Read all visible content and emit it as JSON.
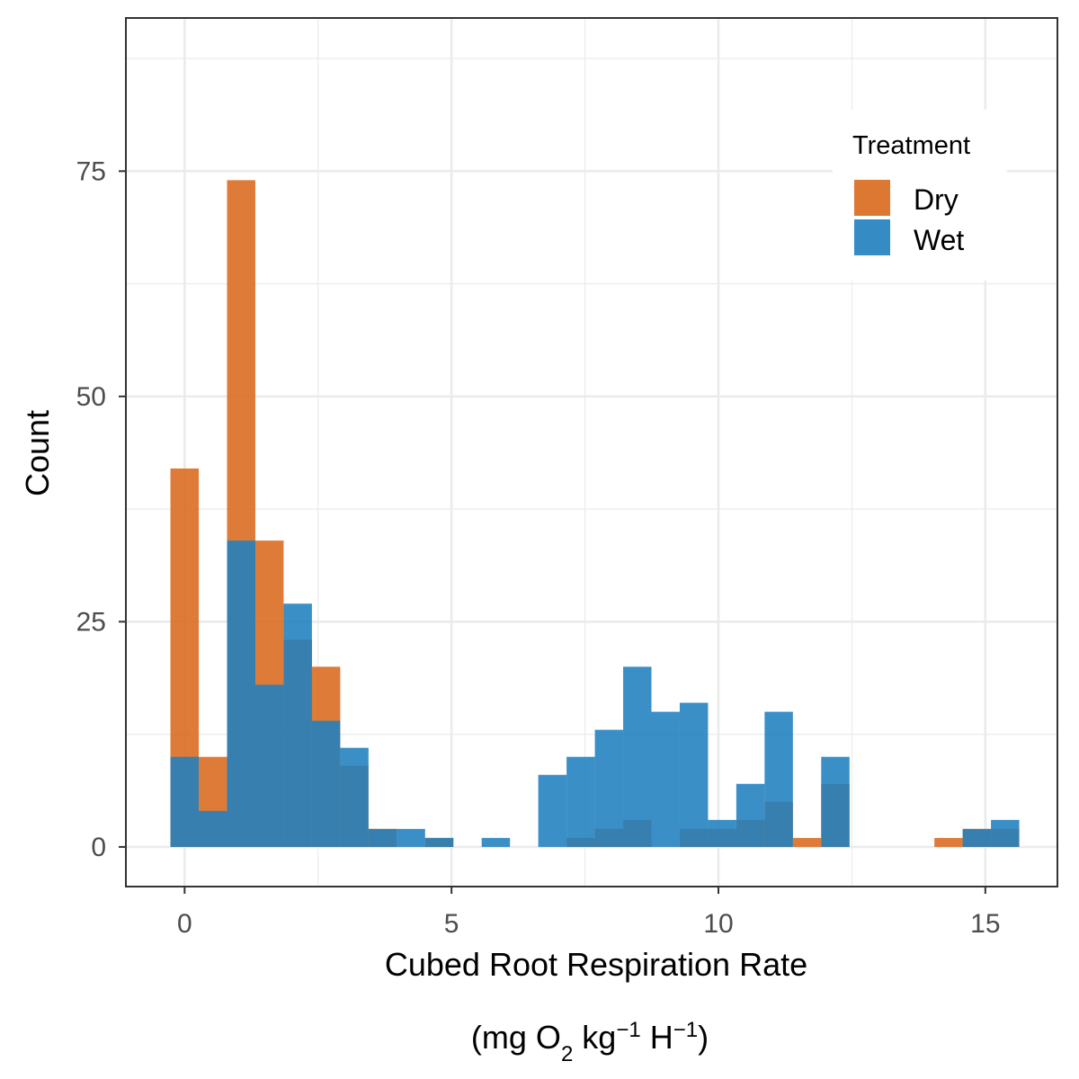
{
  "chart_data": {
    "type": "histogram",
    "xlabel": "Cubed Root Respiration Rate",
    "xlabel_units": {
      "open": "(mg O",
      "sub": "2",
      "kg": " kg",
      "kg_sup": "−1",
      "h": " H",
      "h_sup": "−1",
      "close": ")"
    },
    "ylabel": "Count",
    "x_ticks": [
      "0",
      "5",
      "10",
      "15"
    ],
    "y_ticks": [
      "0",
      "25",
      "50",
      "75"
    ],
    "xlim": [
      -1.1,
      16.35
    ],
    "ylim": [
      -4.4,
      92
    ],
    "bin_width": 0.53,
    "grid": true,
    "legend": {
      "title": "Treatment",
      "position": "top-right",
      "entries": [
        {
          "name": "Dry",
          "color": "#D9691C"
        },
        {
          "name": "Wet",
          "color": "#1F7FBF"
        }
      ]
    },
    "overlap_color": "#2B6E96",
    "series": [
      {
        "name": "Dry",
        "color": "#D9691C",
        "bins": [
          {
            "x": 0.0,
            "count": 42
          },
          {
            "x": 0.53,
            "count": 10
          },
          {
            "x": 1.06,
            "count": 74
          },
          {
            "x": 1.59,
            "count": 34
          },
          {
            "x": 2.12,
            "count": 23
          },
          {
            "x": 2.65,
            "count": 20
          },
          {
            "x": 3.18,
            "count": 9
          },
          {
            "x": 3.71,
            "count": 2
          },
          {
            "x": 4.24,
            "count": 0
          },
          {
            "x": 4.77,
            "count": 1
          },
          {
            "x": 7.42,
            "count": 1
          },
          {
            "x": 7.95,
            "count": 2
          },
          {
            "x": 8.48,
            "count": 3
          },
          {
            "x": 9.54,
            "count": 2
          },
          {
            "x": 10.07,
            "count": 2
          },
          {
            "x": 10.6,
            "count": 3
          },
          {
            "x": 11.13,
            "count": 5
          },
          {
            "x": 11.66,
            "count": 1
          },
          {
            "x": 12.19,
            "count": 7
          },
          {
            "x": 14.31,
            "count": 1
          },
          {
            "x": 14.84,
            "count": 2
          },
          {
            "x": 15.37,
            "count": 2
          }
        ]
      },
      {
        "name": "Wet",
        "color": "#1F7FBF",
        "bins": [
          {
            "x": 0.0,
            "count": 10
          },
          {
            "x": 0.53,
            "count": 4
          },
          {
            "x": 1.06,
            "count": 34
          },
          {
            "x": 1.59,
            "count": 18
          },
          {
            "x": 2.12,
            "count": 27
          },
          {
            "x": 2.65,
            "count": 14
          },
          {
            "x": 3.18,
            "count": 11
          },
          {
            "x": 3.71,
            "count": 2
          },
          {
            "x": 4.24,
            "count": 2
          },
          {
            "x": 4.77,
            "count": 1
          },
          {
            "x": 5.83,
            "count": 1
          },
          {
            "x": 6.89,
            "count": 8
          },
          {
            "x": 7.42,
            "count": 10
          },
          {
            "x": 7.95,
            "count": 13
          },
          {
            "x": 8.48,
            "count": 20
          },
          {
            "x": 9.01,
            "count": 15
          },
          {
            "x": 9.54,
            "count": 16
          },
          {
            "x": 10.07,
            "count": 3
          },
          {
            "x": 10.6,
            "count": 7
          },
          {
            "x": 11.13,
            "count": 15
          },
          {
            "x": 12.19,
            "count": 10
          },
          {
            "x": 14.84,
            "count": 2
          },
          {
            "x": 15.37,
            "count": 3
          }
        ]
      }
    ]
  }
}
